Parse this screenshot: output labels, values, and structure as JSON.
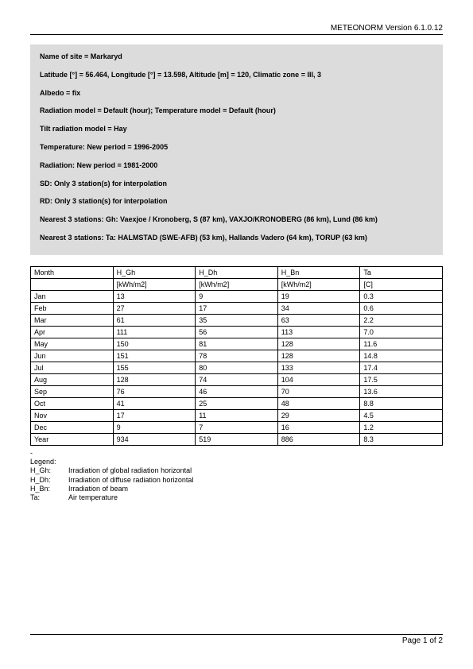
{
  "header": {
    "version": "METEONORM Version 6.1.0.12"
  },
  "info": {
    "lines": [
      "Name of site = Markaryd",
      "Latitude [°] = 56.464, Longitude [°] = 13.598, Altitude [m] = 120, Climatic zone = III, 3",
      "Albedo = fix",
      "Radiation model = Default (hour); Temperature model = Default (hour)",
      "Tilt radiation model = Hay",
      "Temperature: New period = 1996-2005",
      "Radiation: New period = 1981-2000",
      "SD: Only 3 station(s) for interpolation",
      "RD: Only 3 station(s) for interpolation",
      "Nearest 3 stations: Gh: Vaexjoe / Kronoberg, S (87 km), VAXJO/KRONOBERG (86 km), Lund (86 km)",
      "Nearest 3 stations: Ta: HALMSTAD (SWE-AFB) (53 km), Hallands Vadero (64 km), TORUP (63 km)"
    ]
  },
  "table": {
    "columns": [
      "Month",
      "H_Gh",
      "H_Dh",
      "H_Bn",
      "Ta"
    ],
    "units": [
      "",
      "[kWh/m2]",
      "[kWh/m2]",
      "[kWh/m2]",
      "[C]"
    ],
    "rows": [
      [
        "Jan",
        "13",
        "9",
        "19",
        "0.3"
      ],
      [
        "Feb",
        "27",
        "17",
        "34",
        "0.6"
      ],
      [
        "Mar",
        "61",
        "35",
        "63",
        "2.2"
      ],
      [
        "Apr",
        "111",
        "56",
        "113",
        "7.0"
      ],
      [
        "May",
        "150",
        "81",
        "128",
        "11.6"
      ],
      [
        "Jun",
        "151",
        "78",
        "128",
        "14.8"
      ],
      [
        "Jul",
        "155",
        "80",
        "133",
        "17.4"
      ],
      [
        "Aug",
        "128",
        "74",
        "104",
        "17.5"
      ],
      [
        "Sep",
        "76",
        "46",
        "70",
        "13.6"
      ],
      [
        "Oct",
        "41",
        "25",
        "48",
        "8.8"
      ],
      [
        "Nov",
        "17",
        "11",
        "29",
        "4.5"
      ],
      [
        "Dec",
        "9",
        "7",
        "16",
        "1.2"
      ],
      [
        "Year",
        "934",
        "519",
        "886",
        "8.3"
      ]
    ],
    "col_widths": [
      "20%",
      "20%",
      "20%",
      "20%",
      "20%"
    ]
  },
  "legend": {
    "title": "Legend:",
    "items": [
      {
        "key": "H_Gh:",
        "desc": "Irradiation of global radiation horizontal"
      },
      {
        "key": "H_Dh:",
        "desc": "Irradiation of diffuse radiation horizontal"
      },
      {
        "key": "H_Bn:",
        "desc": "Irradiation of beam"
      },
      {
        "key": "Ta:",
        "desc": "Air temperature"
      }
    ]
  },
  "footer": {
    "page": "Page 1 of 2"
  }
}
